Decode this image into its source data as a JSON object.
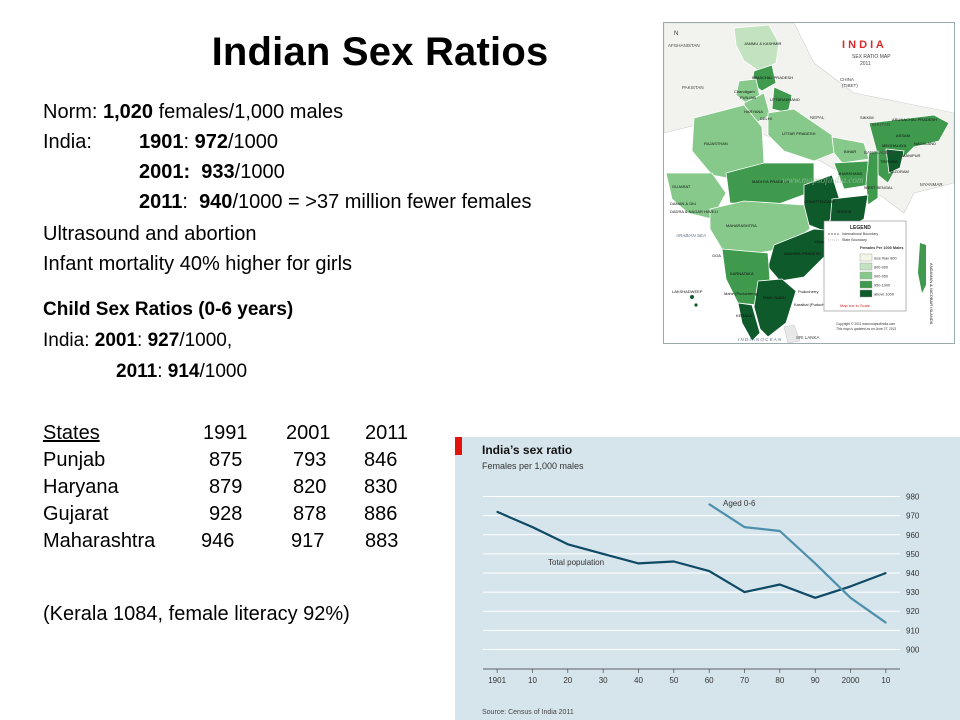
{
  "title": "Indian Sex Ratios",
  "text": {
    "norm_label": "Norm: ",
    "norm_value": "1,020",
    "norm_rest": " females/1,000 males",
    "india_label": "India:",
    "r1901_year": "1901",
    "r1901_value": "972",
    "r1901_rest": "/1000",
    "r2001_year": "2001:",
    "r2001_value": "933",
    "r2001_rest": "/1000",
    "r2011_year": "2011",
    "r2011_value": "940",
    "r2011_rest": "/1000 = >37 million fewer females",
    "ultrasound": "Ultrasound and abortion",
    "infant": "Infant mortality 40% higher for girls",
    "child_title": "Child Sex Ratios (0-6 years)",
    "child_india": "India: ",
    "child_2001_year": "2001",
    "child_2001_value": "927",
    "child_2001_rest": "/1000,",
    "child_2011_year": "2011",
    "child_2011_value": "914",
    "child_2011_rest": "/1000",
    "kerala": "(Kerala 1084, female literacy 92%)"
  },
  "states_table": {
    "headers": [
      "States",
      "1991",
      "2001",
      "2011"
    ],
    "rows": [
      {
        "state": "Punjab",
        "v1991": "875",
        "v2001": "793",
        "v2011": "846"
      },
      {
        "state": "Haryana",
        "v1991": "879",
        "v2001": "820",
        "v2011": "830"
      },
      {
        "state": "Gujarat",
        "v1991": "928",
        "v2001": "878",
        "v2011": "886"
      },
      {
        "state": "Maharashtra",
        "v1991": "946",
        "v2001": "917",
        "v2011": "883"
      }
    ]
  },
  "map": {
    "title": "I N D I A",
    "subtitle": "SEX RATIO MAP",
    "year": "2011",
    "legend_title": "LEGEND",
    "legend_items": [
      "International Boundary",
      "State Boundary"
    ],
    "legend_subtitle": "Females Per 1000 Males",
    "legend_classes": [
      "less than 800",
      "800-900",
      "900-950",
      "950-1000",
      "above 1000"
    ],
    "legend_colors": [
      "#f3f6e4",
      "#c3e3c0",
      "#86c98a",
      "#3f9a4e",
      "#0f5a2b"
    ],
    "map_note": "Map not to Scale",
    "copyright": "Copyright © 2011 www.mapsofindia.com",
    "updated": "This map is updated as on June 27, 2011",
    "labels": {
      "afghanistan": "AFGHANISTAN",
      "pakistan": "PAKISTAN",
      "china": "CHINA",
      "tibet": "(TIBET)",
      "nepal": "NEPAL",
      "bhutan": "BHUTAN",
      "bangladesh": "BANGLADESH",
      "myanmar": "MYANMAR",
      "sri_lanka": "SRI LANKA",
      "jammu": "JAMMU & KASHMIR",
      "himachal": "HIMACHAL PRADESH",
      "punjab": "PUNJAB",
      "chandigarh": "Chandigarh",
      "haryana": "HARYANA",
      "uttarakhand": "UTTARAKHAND",
      "delhi": "DELHI",
      "rajasthan": "RAJASTHAN",
      "uttar_pradesh": "UTTAR PRADESH",
      "bihar": "BIHAR",
      "sikkim": "SIKKIM",
      "arunachal": "ARUNACHAL PRADESH",
      "assam": "ASSAM",
      "nagaland": "NAGALAND",
      "meghalaya": "MEGHALAYA",
      "manipur": "MANIPUR",
      "tripura": "TRIPURA",
      "mizoram": "MIZORAM",
      "west_bengal": "WEST BENGAL",
      "jharkhand": "JHARKHAND",
      "gujarat": "GUJARAT",
      "madhya_pradesh": "MADHYA PRADESH",
      "chhattisgarh": "CHHATTISGARH",
      "odisha": "ODISHA",
      "daman": "DAMAN & DIU",
      "dadra": "DADRA & NAGAR HAVELI",
      "maharashtra": "MAHARASHTRA",
      "andhra": "ANDHRA PRADESH",
      "goa": "GOA",
      "karnataka": "KARNATAKA",
      "kerala": "KERALA",
      "tamil_nadu": "TAMIL NADU",
      "puducherry": "Puducherry",
      "yanam": "Yanam (Puducherry)",
      "karaikal": "Karaikal (Puducherry)",
      "mahe": "Mahe (Puducherry)",
      "lakshadweep": "LAKSHADWEEP",
      "andaman": "ANDAMAN & NICOBAR ISLANDS",
      "arabian_sea": "ARABIAN SEA",
      "bay_of_bengal": "BAY OF BENGAL",
      "indian_ocean": "I N D I A N   O C E A N",
      "watermark": "www.mapsofindia.com"
    }
  },
  "chart_data": {
    "type": "line",
    "title": "India’s sex ratio",
    "subtitle": "Females per 1,000 males",
    "source": "Source: Census of India 2011",
    "x_tick_labels": [
      "1901",
      "10",
      "20",
      "30",
      "40",
      "50",
      "60",
      "70",
      "80",
      "90",
      "2000",
      "10"
    ],
    "x_ticks": [
      1901,
      1911,
      1921,
      1931,
      1941,
      1951,
      1961,
      1971,
      1981,
      1991,
      2001,
      2011
    ],
    "xlim": [
      1897,
      2015
    ],
    "ylim": [
      895,
      985
    ],
    "y_ticks": [
      900,
      910,
      920,
      930,
      940,
      950,
      960,
      970,
      980
    ],
    "y_axis_side": "right",
    "grid": true,
    "series": [
      {
        "name": "Total population",
        "color": "#0e4a66",
        "x": [
          1901,
          1911,
          1921,
          1931,
          1941,
          1951,
          1961,
          1971,
          1981,
          1991,
          2001,
          2011
        ],
        "y": [
          972,
          964,
          955,
          950,
          945,
          946,
          941,
          930,
          934,
          927,
          933,
          940
        ]
      },
      {
        "name": "Aged 0-6",
        "color": "#4d8fac",
        "x": [
          1961,
          1971,
          1981,
          1991,
          2001,
          2011
        ],
        "y": [
          976,
          964,
          962,
          945,
          927,
          914
        ]
      }
    ]
  }
}
